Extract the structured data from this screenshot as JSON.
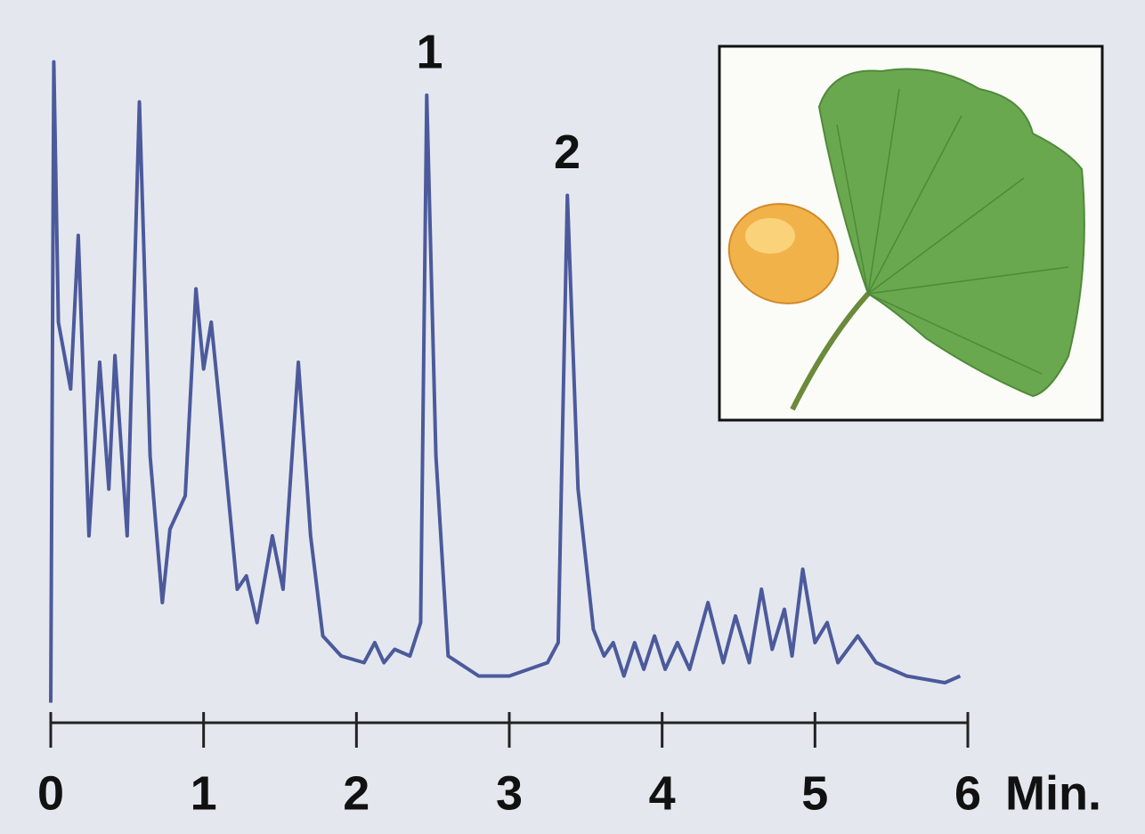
{
  "chart_data": {
    "type": "line",
    "x": [
      0,
      0.02,
      0.05,
      0.13,
      0.18,
      0.25,
      0.32,
      0.38,
      0.42,
      0.5,
      0.58,
      0.65,
      0.73,
      0.78,
      0.88,
      0.95,
      1.0,
      1.05,
      1.12,
      1.22,
      1.28,
      1.35,
      1.45,
      1.52,
      1.62,
      1.7,
      1.78,
      1.9,
      2.05,
      2.12,
      2.18,
      2.25,
      2.35,
      2.42,
      2.46,
      2.52,
      2.6,
      2.8,
      3.0,
      3.25,
      3.32,
      3.38,
      3.45,
      3.55,
      3.62,
      3.68,
      3.75,
      3.82,
      3.88,
      3.95,
      4.02,
      4.1,
      4.18,
      4.3,
      4.4,
      4.48,
      4.57,
      4.65,
      4.72,
      4.8,
      4.85,
      4.92,
      5.0,
      5.08,
      5.15,
      5.28,
      5.4,
      5.6,
      5.85,
      5.95
    ],
    "series": [
      {
        "color": "#4c5a9c",
        "values": [
          3,
          99,
          60,
          50,
          73,
          28,
          54,
          35,
          55,
          28,
          93,
          40,
          18,
          29,
          34,
          65,
          53,
          60,
          44,
          20,
          22,
          15,
          28,
          20,
          54,
          28,
          13,
          10,
          9,
          12,
          9,
          11,
          10,
          15,
          94,
          40,
          10,
          7,
          7,
          9,
          12,
          79,
          35,
          14,
          10,
          12,
          7,
          12,
          8,
          13,
          8,
          12,
          8,
          18,
          9,
          16,
          9,
          20,
          11,
          17,
          10,
          23,
          12,
          15,
          9,
          13,
          9,
          7,
          6,
          7
        ]
      }
    ],
    "xlim": [
      0,
      6
    ],
    "xticks": [
      0,
      1,
      2,
      3,
      4,
      5,
      6
    ],
    "xlabel": "Min.",
    "ylim": [
      0,
      100
    ],
    "annotations": [
      {
        "text": "1",
        "x": 2.45,
        "y": 100
      },
      {
        "text": "2",
        "x": 3.35,
        "y": 85
      }
    ]
  }
}
